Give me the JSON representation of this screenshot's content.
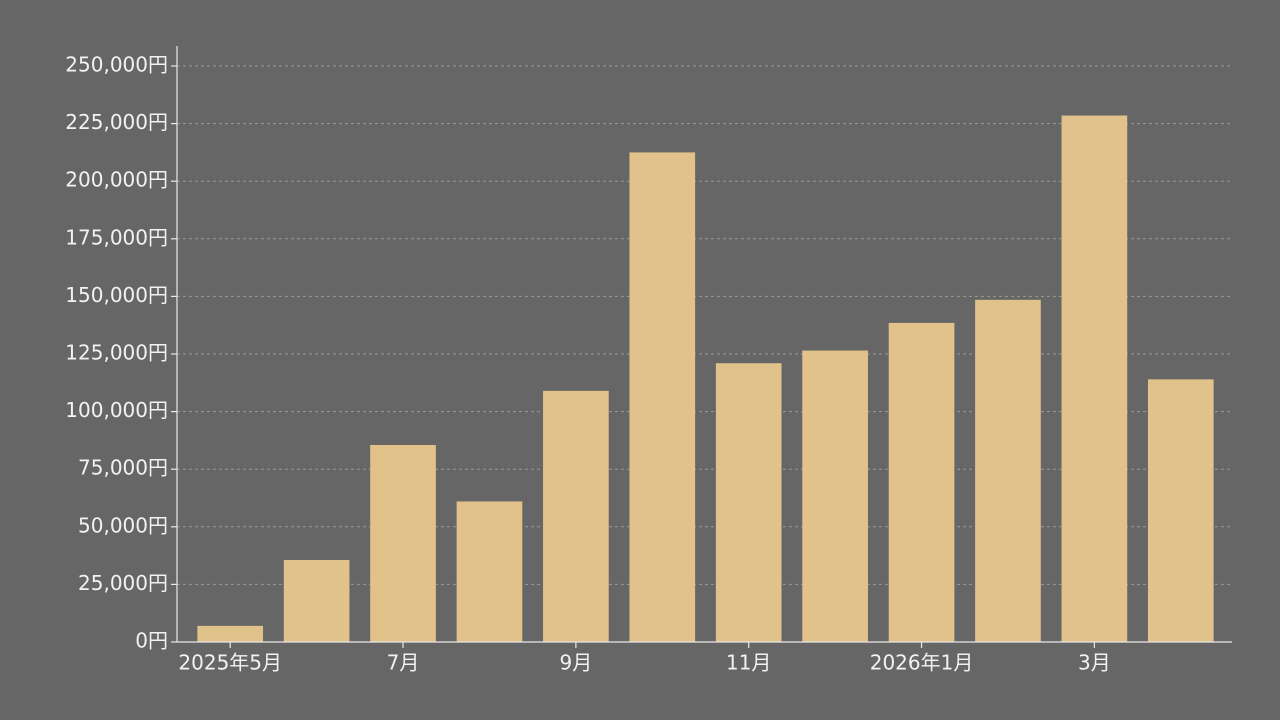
{
  "chart_data": {
    "type": "bar",
    "categories": [
      "2025年5月",
      null,
      "7月",
      null,
      "9月",
      null,
      "11月",
      null,
      "2026年1月",
      null,
      "3月",
      null
    ],
    "values": [
      7000,
      35600,
      85500,
      61000,
      109000,
      212500,
      121000,
      126500,
      138500,
      148500,
      228500,
      114000
    ],
    "color": "#e0c28a",
    "ylim": [
      0,
      250000
    ],
    "yticks": [
      {
        "value": 0,
        "label": "0円"
      },
      {
        "value": 25000,
        "label": "25,000円"
      },
      {
        "value": 50000,
        "label": "50,000円"
      },
      {
        "value": 75000,
        "label": "75,000円"
      },
      {
        "value": 100000,
        "label": "100,000円"
      },
      {
        "value": 125000,
        "label": "125,000円"
      },
      {
        "value": 150000,
        "label": "150,000円"
      },
      {
        "value": 175000,
        "label": "175,000円"
      },
      {
        "value": 200000,
        "label": "200,000円"
      },
      {
        "value": 225000,
        "label": "225,000円"
      },
      {
        "value": 250000,
        "label": "250,000円"
      }
    ],
    "grid": true
  }
}
